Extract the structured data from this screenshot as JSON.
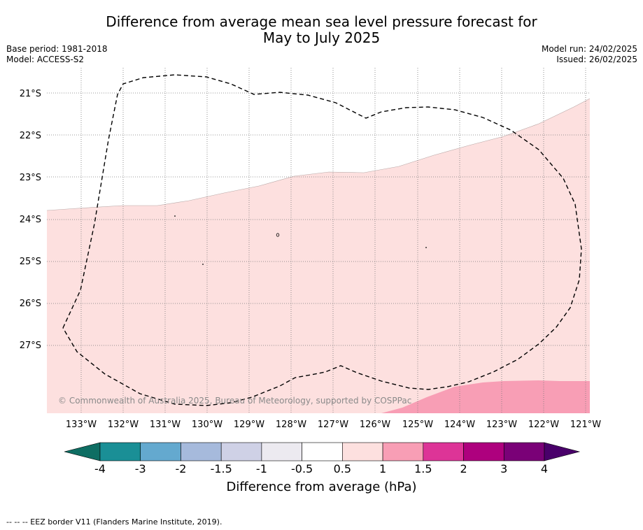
{
  "title_line1": "Difference from average mean sea level pressure forecast for",
  "title_line2": "May to July 2025",
  "base_period": "Base period: 1981-2018",
  "model": "Model: ACCESS-S2",
  "model_run": "Model run: 24/02/2025",
  "issued": "Issued: 26/02/2025",
  "copyright": "© Commonwealth of Australia 2025, Bureau of Meteorology, supported by COSPPac",
  "lat_labels": [
    "21°S",
    "22°S",
    "23°S",
    "24°S",
    "25°S",
    "26°S",
    "27°S"
  ],
  "lon_labels": [
    "133°W",
    "132°W",
    "131°W",
    "130°W",
    "129°W",
    "128°W",
    "127°W",
    "126°W",
    "125°W",
    "124°W",
    "123°W",
    "122°W",
    "121°W"
  ],
  "colorbar": {
    "title": "Difference from average (hPa)",
    "ticks": [
      "-4",
      "-3",
      "-2",
      "-1.5",
      "-1",
      "-0.5",
      "0.5",
      "1",
      "1.5",
      "2",
      "3",
      "4"
    ],
    "colors": [
      "#1a8f96",
      "#64a9cf",
      "#a6badc",
      "#cfd1e6",
      "#eceaf0",
      "#ffffff",
      "#fde0df",
      "#f89eb5",
      "#dd3497",
      "#ae017e",
      "#7a0177"
    ],
    "under_color": "#0e6e63",
    "over_color": "#49006a"
  },
  "footer": "--  --  -- EEZ border V11 (Flanders Marine Institute, 2019).",
  "colors": {
    "light_pink": "#fde0df",
    "pink": "#f89eb5"
  }
}
